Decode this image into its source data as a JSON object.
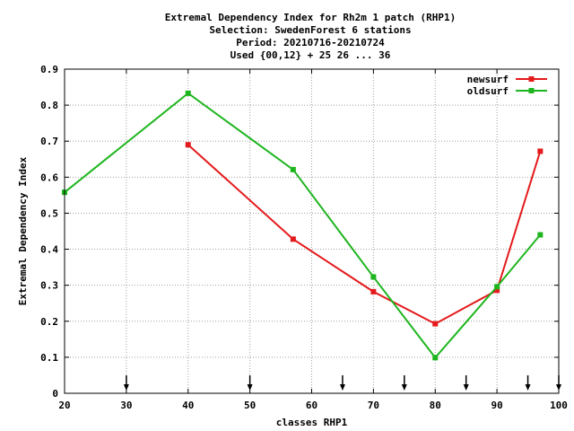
{
  "chart_data": {
    "type": "line",
    "title_lines": [
      "Extremal Dependency Index  for Rh2m 1 patch (RHP1)",
      "Selection: SwedenForest      6 stations",
      "Period: 20210716-20210724",
      "Used {00,12} + 25 26 ... 36"
    ],
    "xlabel": "classes RHP1",
    "ylabel": "Extremal Dependency Index",
    "xlim": [
      20,
      100
    ],
    "ylim": [
      0,
      0.9
    ],
    "x_ticks": [
      20,
      30,
      40,
      50,
      60,
      70,
      80,
      90,
      100
    ],
    "y_ticks": [
      0,
      0.1,
      0.2,
      0.3,
      0.4,
      0.5,
      0.6,
      0.7,
      0.8,
      0.9
    ],
    "grid": true,
    "legend_position": "top-right",
    "series": [
      {
        "name": "newsurf",
        "color": "#e41a1c",
        "points": [
          [
            40,
            0.69
          ],
          [
            57,
            0.428
          ],
          [
            70,
            0.282
          ],
          [
            80,
            0.193
          ],
          [
            90,
            0.286
          ],
          [
            97,
            0.672
          ]
        ]
      },
      {
        "name": "oldsurf",
        "color": "#1db51d",
        "points": [
          [
            20,
            0.558
          ],
          [
            40,
            0.833
          ],
          [
            57,
            0.621
          ],
          [
            70,
            0.323
          ],
          [
            80,
            0.099
          ],
          [
            90,
            0.296
          ],
          [
            97,
            0.44
          ]
        ]
      }
    ],
    "markers_x": [
      30,
      50,
      65,
      75,
      85,
      95,
      100
    ]
  }
}
